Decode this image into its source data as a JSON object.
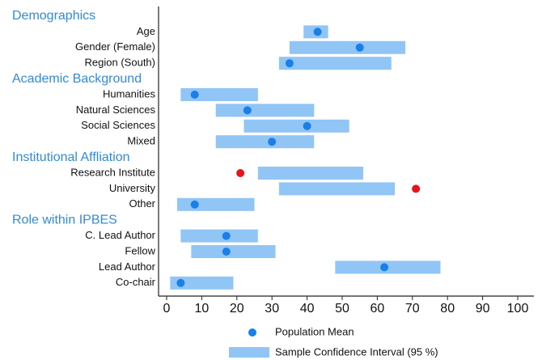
{
  "chart_data": {
    "type": "interval",
    "interval_color": "#90c5f5",
    "mean_color": "#1a7fe6",
    "xlim": [
      0,
      100
    ],
    "xticks": [
      0,
      10,
      20,
      30,
      40,
      50,
      60,
      70,
      80,
      90,
      100
    ],
    "legend": {
      "mean": "Population Mean",
      "interval": "Sample Confidence Interval (95 %)"
    },
    "groups": [
      {
        "title": "Demographics",
        "categories": [
          "Age",
          "Gender (Female)",
          "Region (South)"
        ],
        "low": [
          39,
          35,
          32
        ],
        "high": [
          46,
          68,
          64
        ],
        "mean": [
          43,
          55,
          35
        ],
        "mean_colors": [
          "#1a7fe6",
          "#1a7fe6",
          "#1a7fe6"
        ]
      },
      {
        "title": "Academic Background",
        "categories": [
          "Humanities",
          "Natural Sciences",
          "Social Sciences",
          "Mixed"
        ],
        "low": [
          4,
          14,
          22,
          14
        ],
        "high": [
          26,
          42,
          52,
          42
        ],
        "mean": [
          8,
          23,
          40,
          30
        ],
        "mean_colors": [
          "#1a7fe6",
          "#1a7fe6",
          "#1a7fe6",
          "#1a7fe6"
        ]
      },
      {
        "title": "Institutional Affliation",
        "categories": [
          "Research Institute",
          "University",
          "Other"
        ],
        "low": [
          26,
          32,
          3
        ],
        "high": [
          56,
          65,
          25
        ],
        "mean": [
          21,
          71,
          8
        ],
        "mean_colors": [
          "#e8141b",
          "#e8141b",
          "#1a7fe6"
        ]
      },
      {
        "title": "Role within IPBES",
        "categories": [
          "C. Lead Author",
          "Fellow",
          "Lead Author",
          "Co-chair"
        ],
        "low": [
          4,
          7,
          48,
          1
        ],
        "high": [
          26,
          31,
          78,
          19
        ],
        "mean": [
          17,
          17,
          62,
          4
        ],
        "mean_colors": [
          "#1a7fe6",
          "#1a7fe6",
          "#1a7fe6",
          "#1a7fe6"
        ]
      }
    ]
  }
}
